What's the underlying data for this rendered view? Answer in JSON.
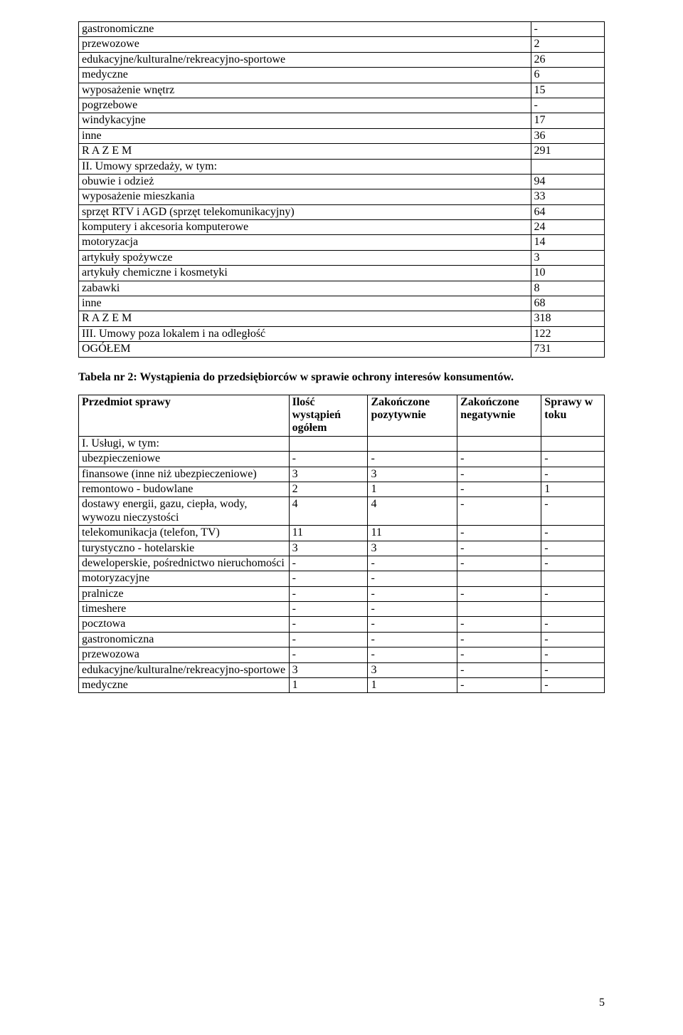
{
  "table1": {
    "columns": [
      "label",
      "value"
    ],
    "col_widths": [
      "86%",
      "14%"
    ],
    "rows": [
      {
        "label": "gastronomiczne",
        "value": "-",
        "bold": false
      },
      {
        "label": "przewozowe",
        "value": "2",
        "bold": false
      },
      {
        "label": "edukacyjne/kulturalne/rekreacyjno-sportowe",
        "value": "26",
        "bold": false
      },
      {
        "label": "medyczne",
        "value": "6",
        "bold": false
      },
      {
        "label": "wyposażenie wnętrz",
        "value": "15",
        "bold": false
      },
      {
        "label": "pogrzebowe",
        "value": "-",
        "bold": false
      },
      {
        "label": "windykacyjne",
        "value": "17",
        "bold": false
      },
      {
        "label": "inne",
        "value": "36",
        "bold": false
      },
      {
        "label": "R A Z E M",
        "value": "291",
        "bold": true,
        "indent": "razem"
      },
      {
        "label": "II. Umowy sprzedaży, w tym:",
        "value": "",
        "bold": true
      },
      {
        "label": "obuwie i odzież",
        "value": "94",
        "bold": false
      },
      {
        "label": "wyposażenie mieszkania",
        "value": "33",
        "bold": false
      },
      {
        "label": "sprzęt RTV i AGD (sprzęt telekomunikacyjny)",
        "value": "64",
        "bold": false
      },
      {
        "label": "komputery i akcesoria komputerowe",
        "value": "24",
        "bold": false
      },
      {
        "label": "motoryzacja",
        "value": "14",
        "bold": false
      },
      {
        "label": "artykuły spożywcze",
        "value": "3",
        "bold": false
      },
      {
        "label": "artykuły chemiczne i kosmetyki",
        "value": "10",
        "bold": false
      },
      {
        "label": "zabawki",
        "value": "8",
        "bold": false
      },
      {
        "label": "inne",
        "value": "68",
        "bold": false
      },
      {
        "label": "R A Z E M",
        "value": "318",
        "bold": true,
        "indent": "razem"
      },
      {
        "label": "III. Umowy poza lokalem i na odległość",
        "value": "122",
        "bold": true
      },
      {
        "label": "OGÓŁEM",
        "value": "731",
        "bold": true,
        "indent": "ogolem"
      }
    ]
  },
  "caption2": "Tabela nr 2: Wystąpienia do przedsiębiorców w sprawie ochrony interesów konsumentów.",
  "table2": {
    "headers": [
      "Przedmiot sprawy",
      "Ilość wystąpień ogółem",
      "Zakończone pozytywnie",
      "Zakończone negatywnie",
      "Sprawy w toku"
    ],
    "col_widths": [
      "40%",
      "15%",
      "17%",
      "16%",
      "12%"
    ],
    "rows": [
      {
        "cells": [
          "I. Usługi, w tym:",
          "",
          "",
          "",
          ""
        ],
        "bold": true
      },
      {
        "cells": [
          "ubezpieczeniowe",
          "-",
          "-",
          "-",
          "-"
        ]
      },
      {
        "cells": [
          "finansowe (inne niż ubezpieczeniowe)",
          "3",
          "3",
          "-",
          "-"
        ]
      },
      {
        "cells": [
          "remontowo - budowlane",
          "2",
          "1",
          "-",
          "1"
        ]
      },
      {
        "cells": [
          "dostawy energii, gazu, ciepła, wody, wywozu nieczystości",
          "4",
          "4",
          "-",
          "-"
        ]
      },
      {
        "cells": [
          "telekomunikacja (telefon, TV)",
          "11",
          "11",
          "-",
          "-"
        ]
      },
      {
        "cells": [
          "turystyczno - hotelarskie",
          "3",
          "3",
          "-",
          "-"
        ]
      },
      {
        "cells": [
          "deweloperskie, pośrednictwo nieruchomości",
          "-",
          "-",
          "-",
          "-"
        ],
        "justify": true
      },
      {
        "cells": [
          "motoryzacyjne",
          "-",
          "-",
          "",
          ""
        ]
      },
      {
        "cells": [
          "pralnicze",
          "-",
          "-",
          "-",
          "-"
        ]
      },
      {
        "cells": [
          "timeshere",
          "-",
          "-",
          "",
          ""
        ]
      },
      {
        "cells": [
          "pocztowa",
          "-",
          "-",
          "-",
          "-"
        ]
      },
      {
        "cells": [
          "gastronomiczna",
          "-",
          "-",
          "-",
          "-"
        ]
      },
      {
        "cells": [
          "przewozowa",
          "-",
          "-",
          "-",
          "-"
        ]
      },
      {
        "cells": [
          "edukacyjne/kulturalne/rekreacyjno-sportowe",
          "3",
          "3",
          "-",
          "-"
        ]
      },
      {
        "cells": [
          "medyczne",
          "1",
          "1",
          "-",
          "-"
        ]
      }
    ]
  },
  "page_number": "5",
  "style": {
    "font_family": "Times New Roman",
    "base_fontsize_pt": 12,
    "header_fontweight": "bold",
    "border_color": "#000000",
    "background_color": "#ffffff",
    "text_color": "#000000"
  }
}
